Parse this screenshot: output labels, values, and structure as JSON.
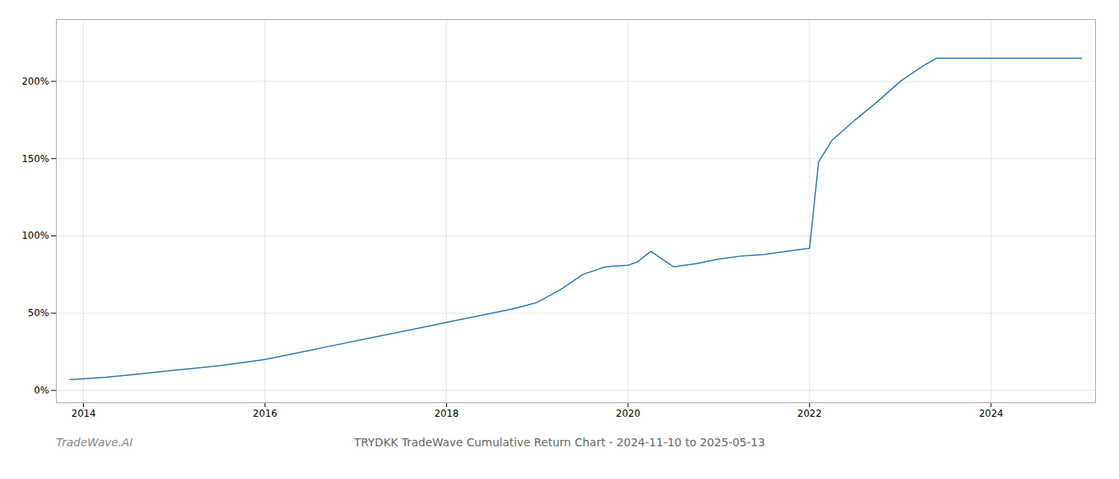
{
  "chart_data": {
    "type": "line",
    "title": "TRYDKK TradeWave Cumulative Return Chart - 2024-11-10 to 2025-05-13",
    "annotations": [
      "TradeWave.AI"
    ],
    "x": [
      2013.85,
      2014.0,
      2014.25,
      2014.5,
      2014.75,
      2015.0,
      2015.25,
      2015.5,
      2015.75,
      2016.0,
      2016.25,
      2016.5,
      2016.75,
      2017.0,
      2017.25,
      2017.5,
      2017.75,
      2018.0,
      2018.25,
      2018.5,
      2018.75,
      2019.0,
      2019.25,
      2019.5,
      2019.75,
      2020.0,
      2020.1,
      2020.25,
      2020.5,
      2020.75,
      2021.0,
      2021.25,
      2021.5,
      2021.75,
      2022.0,
      2022.1,
      2022.25,
      2022.5,
      2022.75,
      2023.0,
      2023.25,
      2023.4,
      2023.5,
      2023.75,
      2024.0,
      2024.25,
      2024.5,
      2024.75,
      2025.0
    ],
    "values": [
      7,
      7.5,
      8.5,
      10,
      11.5,
      13,
      14.5,
      16,
      18,
      20,
      23,
      26,
      29,
      32,
      35,
      38,
      41,
      44,
      47,
      50,
      53,
      57,
      65,
      75,
      80,
      81,
      83,
      90,
      80,
      82,
      85,
      87,
      88,
      90,
      92,
      148,
      162,
      175,
      187,
      200,
      210,
      215,
      215,
      215,
      215,
      215,
      215,
      215,
      215
    ],
    "color": "#2878b5",
    "xlim": [
      2013.7,
      2025.15
    ],
    "xticks": [
      2014,
      2016,
      2018,
      2020,
      2022,
      2024
    ],
    "ylim": [
      -8,
      240
    ],
    "yticks": [
      {
        "value": 0,
        "label": "0%"
      },
      {
        "value": 50,
        "label": "50%"
      },
      {
        "value": 100,
        "label": "100%"
      },
      {
        "value": 150,
        "label": "150%"
      },
      {
        "value": 200,
        "label": "200%"
      }
    ],
    "grid": true
  }
}
